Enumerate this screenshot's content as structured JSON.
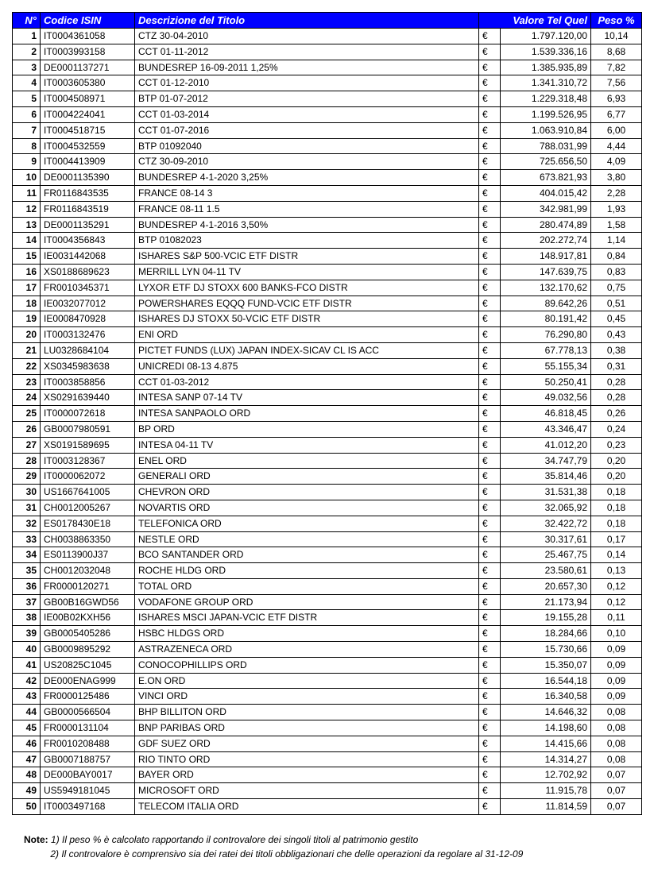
{
  "headers": {
    "n": "N°",
    "isin": "Codice ISIN",
    "desc": "Descrizione del Titolo",
    "val": "Valore Tel Quel",
    "peso": "Peso %"
  },
  "currency": "€",
  "rows": [
    {
      "n": "1",
      "isin": "IT0004361058",
      "desc": "CTZ 30-04-2010",
      "val": "1.797.120,00",
      "peso": "10,14"
    },
    {
      "n": "2",
      "isin": "IT0003993158",
      "desc": "CCT 01-11-2012",
      "val": "1.539.336,16",
      "peso": "8,68"
    },
    {
      "n": "3",
      "isin": "DE0001137271",
      "desc": "BUNDESREP 16-09-2011 1,25%",
      "val": "1.385.935,89",
      "peso": "7,82"
    },
    {
      "n": "4",
      "isin": "IT0003605380",
      "desc": "CCT 01-12-2010",
      "val": "1.341.310,72",
      "peso": "7,56"
    },
    {
      "n": "5",
      "isin": "IT0004508971",
      "desc": "BTP 01-07-2012",
      "val": "1.229.318,48",
      "peso": "6,93"
    },
    {
      "n": "6",
      "isin": "IT0004224041",
      "desc": "CCT 01-03-2014",
      "val": "1.199.526,95",
      "peso": "6,77"
    },
    {
      "n": "7",
      "isin": "IT0004518715",
      "desc": "CCT 01-07-2016",
      "val": "1.063.910,84",
      "peso": "6,00"
    },
    {
      "n": "8",
      "isin": "IT0004532559",
      "desc": "BTP 01092040",
      "val": "788.031,99",
      "peso": "4,44"
    },
    {
      "n": "9",
      "isin": "IT0004413909",
      "desc": "CTZ 30-09-2010",
      "val": "725.656,50",
      "peso": "4,09"
    },
    {
      "n": "10",
      "isin": "DE0001135390",
      "desc": "BUNDESREP 4-1-2020 3,25%",
      "val": "673.821,93",
      "peso": "3,80"
    },
    {
      "n": "11",
      "isin": "FR0116843535",
      "desc": "FRANCE 08-14 3",
      "val": "404.015,42",
      "peso": "2,28"
    },
    {
      "n": "12",
      "isin": "FR0116843519",
      "desc": "FRANCE 08-11 1.5",
      "val": "342.981,99",
      "peso": "1,93"
    },
    {
      "n": "13",
      "isin": "DE0001135291",
      "desc": "BUNDESREP 4-1-2016 3,50%",
      "val": "280.474,89",
      "peso": "1,58"
    },
    {
      "n": "14",
      "isin": "IT0004356843",
      "desc": "BTP 01082023",
      "val": "202.272,74",
      "peso": "1,14"
    },
    {
      "n": "15",
      "isin": "IE0031442068",
      "desc": "ISHARES S&P 500-VCIC ETF DISTR",
      "val": "148.917,81",
      "peso": "0,84"
    },
    {
      "n": "16",
      "isin": "XS0188689623",
      "desc": "MERRILL LYN 04-11 TV",
      "val": "147.639,75",
      "peso": "0,83"
    },
    {
      "n": "17",
      "isin": "FR0010345371",
      "desc": "LYXOR ETF DJ STOXX 600 BANKS-FCO DISTR",
      "val": "132.170,62",
      "peso": "0,75"
    },
    {
      "n": "18",
      "isin": "IE0032077012",
      "desc": "POWERSHARES EQQQ FUND-VCIC ETF DISTR",
      "val": "89.642,26",
      "peso": "0,51"
    },
    {
      "n": "19",
      "isin": "IE0008470928",
      "desc": "ISHARES DJ STOXX 50-VCIC ETF DISTR",
      "val": "80.191,42",
      "peso": "0,45"
    },
    {
      "n": "20",
      "isin": "IT0003132476",
      "desc": "ENI ORD",
      "val": "76.290,80",
      "peso": "0,43"
    },
    {
      "n": "21",
      "isin": "LU0328684104",
      "desc": "PICTET FUNDS (LUX) JAPAN INDEX-SICAV CL IS ACC",
      "val": "67.778,13",
      "peso": "0,38"
    },
    {
      "n": "22",
      "isin": "XS0345983638",
      "desc": "UNICREDI 08-13 4.875",
      "val": "55.155,34",
      "peso": "0,31"
    },
    {
      "n": "23",
      "isin": "IT0003858856",
      "desc": "CCT 01-03-2012",
      "val": "50.250,41",
      "peso": "0,28"
    },
    {
      "n": "24",
      "isin": "XS0291639440",
      "desc": "INTESA SANP 07-14 TV",
      "val": "49.032,56",
      "peso": "0,28"
    },
    {
      "n": "25",
      "isin": "IT0000072618",
      "desc": "INTESA SANPAOLO ORD",
      "val": "46.818,45",
      "peso": "0,26"
    },
    {
      "n": "26",
      "isin": "GB0007980591",
      "desc": "BP ORD",
      "val": "43.346,47",
      "peso": "0,24"
    },
    {
      "n": "27",
      "isin": "XS0191589695",
      "desc": "INTESA 04-11 TV",
      "val": "41.012,20",
      "peso": "0,23"
    },
    {
      "n": "28",
      "isin": "IT0003128367",
      "desc": "ENEL ORD",
      "val": "34.747,79",
      "peso": "0,20"
    },
    {
      "n": "29",
      "isin": "IT0000062072",
      "desc": "GENERALI ORD",
      "val": "35.814,46",
      "peso": "0,20"
    },
    {
      "n": "30",
      "isin": "US1667641005",
      "desc": "CHEVRON ORD",
      "val": "31.531,38",
      "peso": "0,18"
    },
    {
      "n": "31",
      "isin": "CH0012005267",
      "desc": "NOVARTIS ORD",
      "val": "32.065,92",
      "peso": "0,18"
    },
    {
      "n": "32",
      "isin": "ES0178430E18",
      "desc": "TELEFONICA ORD",
      "val": "32.422,72",
      "peso": "0,18"
    },
    {
      "n": "33",
      "isin": "CH0038863350",
      "desc": "NESTLE ORD",
      "val": "30.317,61",
      "peso": "0,17"
    },
    {
      "n": "34",
      "isin": "ES0113900J37",
      "desc": "BCO SANTANDER ORD",
      "val": "25.467,75",
      "peso": "0,14"
    },
    {
      "n": "35",
      "isin": "CH0012032048",
      "desc": "ROCHE HLDG ORD",
      "val": "23.580,61",
      "peso": "0,13"
    },
    {
      "n": "36",
      "isin": "FR0000120271",
      "desc": "TOTAL ORD",
      "val": "20.657,30",
      "peso": "0,12"
    },
    {
      "n": "37",
      "isin": "GB00B16GWD56",
      "desc": "VODAFONE GROUP ORD",
      "val": "21.173,94",
      "peso": "0,12"
    },
    {
      "n": "38",
      "isin": "IE00B02KXH56",
      "desc": "ISHARES MSCI JAPAN-VCIC ETF DISTR",
      "val": "19.155,28",
      "peso": "0,11"
    },
    {
      "n": "39",
      "isin": "GB0005405286",
      "desc": "HSBC HLDGS ORD",
      "val": "18.284,66",
      "peso": "0,10"
    },
    {
      "n": "40",
      "isin": "GB0009895292",
      "desc": "ASTRAZENECA ORD",
      "val": "15.730,66",
      "peso": "0,09"
    },
    {
      "n": "41",
      "isin": "US20825C1045",
      "desc": "CONOCOPHILLIPS ORD",
      "val": "15.350,07",
      "peso": "0,09"
    },
    {
      "n": "42",
      "isin": "DE000ENAG999",
      "desc": "E.ON ORD",
      "val": "16.544,18",
      "peso": "0,09"
    },
    {
      "n": "43",
      "isin": "FR0000125486",
      "desc": "VINCI ORD",
      "val": "16.340,58",
      "peso": "0,09"
    },
    {
      "n": "44",
      "isin": "GB0000566504",
      "desc": "BHP BILLITON ORD",
      "val": "14.646,32",
      "peso": "0,08"
    },
    {
      "n": "45",
      "isin": "FR0000131104",
      "desc": "BNP PARIBAS ORD",
      "val": "14.198,60",
      "peso": "0,08"
    },
    {
      "n": "46",
      "isin": "FR0010208488",
      "desc": "GDF SUEZ ORD",
      "val": "14.415,66",
      "peso": "0,08"
    },
    {
      "n": "47",
      "isin": "GB0007188757",
      "desc": "RIO TINTO ORD",
      "val": "14.314,27",
      "peso": "0,08"
    },
    {
      "n": "48",
      "isin": "DE000BAY0017",
      "desc": "BAYER ORD",
      "val": "12.702,92",
      "peso": "0,07"
    },
    {
      "n": "49",
      "isin": "US5949181045",
      "desc": "MICROSOFT ORD",
      "val": "11.915,78",
      "peso": "0,07"
    },
    {
      "n": "50",
      "isin": "IT0003497168",
      "desc": "TELECOM ITALIA ORD",
      "val": "11.814,59",
      "peso": "0,07"
    }
  ],
  "note": {
    "label": "Note:",
    "line1": "1) Il peso % è calcolato rapportando il controvalore dei singoli titoli al patrimonio gestito",
    "line2": "2) Il controvalore è comprensivo sia dei ratei dei titoli obbligazionari che delle operazioni da regolare al 31-12-09"
  }
}
